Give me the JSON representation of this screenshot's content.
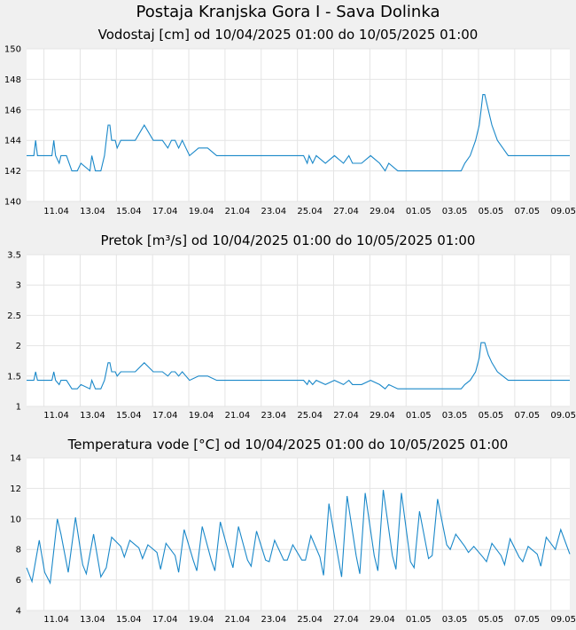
{
  "page": {
    "title": "Postaja Kranjska Gora I - Sava Dolinka"
  },
  "chart_data": [
    {
      "type": "line",
      "title": "Vodostaj [cm] od 10/04/2025 01:00 do 10/05/2025 01:00",
      "xlabel": "",
      "ylabel": "",
      "x_range": [
        "10/04/2025 01:00",
        "10/05/2025 01:00"
      ],
      "x_ticks": [
        "11.04",
        "13.04",
        "15.04",
        "17.04",
        "19.04",
        "21.04",
        "23.04",
        "25.04",
        "27.04",
        "29.04",
        "01.05",
        "03.05",
        "05.05",
        "07.05",
        "09.05"
      ],
      "ylim": [
        140,
        150
      ],
      "y_ticks": [
        "140",
        "142",
        "144",
        "146",
        "148",
        "150"
      ],
      "grid": true,
      "series": [
        {
          "color": "#1a88c9",
          "x": [
            0,
            0.4,
            0.5,
            0.6,
            0.8,
            1.4,
            1.5,
            1.6,
            1.8,
            1.9,
            2.2,
            2.5,
            2.8,
            3.0,
            3.5,
            3.6,
            3.8,
            4.1,
            4.3,
            4.4,
            4.5,
            4.6,
            4.7,
            4.9,
            5.0,
            5.2,
            5.4,
            5.5,
            5.7,
            5.8,
            6.0,
            6.5,
            7.0,
            7.5,
            7.8,
            8.0,
            8.2,
            8.4,
            8.6,
            8.8,
            9.0,
            9.5,
            10.0,
            10.5,
            11.0,
            11.5,
            12.0,
            12.5,
            13.0,
            13.5,
            14.0,
            14.5,
            15.0,
            15.3,
            15.5,
            15.6,
            15.8,
            16.0,
            16.5,
            17.0,
            17.5,
            17.8,
            18.0,
            18.5,
            19.0,
            19.5,
            19.8,
            20.0,
            20.5,
            21.0,
            21.5,
            22.0,
            22.5,
            22.8,
            23.0,
            23.5,
            24.0,
            24.2,
            24.5,
            24.8,
            25.0,
            25.1,
            25.2,
            25.3,
            25.5,
            25.7,
            26.0,
            26.3,
            26.6,
            27.0,
            27.5,
            28.0,
            28.5,
            29.0,
            29.5,
            30.0
          ],
          "values": [
            143,
            143,
            144,
            143,
            143,
            143,
            144,
            143,
            142.5,
            143,
            143,
            142,
            142,
            142.5,
            142,
            143,
            142,
            142,
            143,
            144,
            145,
            145,
            144,
            144,
            143.5,
            144,
            144,
            144,
            144,
            144,
            144,
            145,
            144,
            144,
            143.5,
            144,
            144,
            143.5,
            144,
            143.5,
            143,
            143.5,
            143.5,
            143,
            143,
            143,
            143,
            143,
            143,
            143,
            143,
            143,
            143,
            143,
            142.5,
            143,
            142.5,
            143,
            142.5,
            143,
            142.5,
            143,
            142.5,
            142.5,
            143,
            142.5,
            142,
            142.5,
            142,
            142,
            142,
            142,
            142,
            142,
            142,
            142,
            142,
            142.5,
            143,
            144,
            145,
            146,
            147,
            147,
            146,
            145,
            144,
            143.5,
            143,
            143,
            143,
            143,
            143,
            143,
            143,
            143
          ]
        }
      ]
    },
    {
      "type": "line",
      "title": "Pretok [m³/s] od 10/04/2025 01:00 do 10/05/2025 01:00",
      "xlabel": "",
      "ylabel": "",
      "x_range": [
        "10/04/2025 01:00",
        "10/05/2025 01:00"
      ],
      "x_ticks": [
        "11.04",
        "13.04",
        "15.04",
        "17.04",
        "19.04",
        "21.04",
        "23.04",
        "25.04",
        "27.04",
        "29.04",
        "01.05",
        "03.05",
        "05.05",
        "07.05",
        "09.05"
      ],
      "ylim": [
        1,
        3.5
      ],
      "y_ticks": [
        "1",
        "1.5",
        "2",
        "2.5",
        "3",
        "3.5"
      ],
      "grid": true,
      "series": [
        {
          "color": "#1a88c9",
          "x": [
            0,
            0.4,
            0.5,
            0.6,
            0.8,
            1.4,
            1.5,
            1.6,
            1.8,
            1.9,
            2.2,
            2.5,
            2.8,
            3.0,
            3.5,
            3.6,
            3.8,
            4.1,
            4.3,
            4.4,
            4.5,
            4.6,
            4.7,
            4.9,
            5.0,
            5.2,
            5.4,
            5.5,
            5.7,
            5.8,
            6.0,
            6.5,
            7.0,
            7.5,
            7.8,
            8.0,
            8.2,
            8.4,
            8.6,
            8.8,
            9.0,
            9.5,
            10.0,
            10.5,
            11.0,
            11.5,
            12.0,
            12.5,
            13.0,
            13.5,
            14.0,
            14.5,
            15.0,
            15.3,
            15.5,
            15.6,
            15.8,
            16.0,
            16.5,
            17.0,
            17.5,
            17.8,
            18.0,
            18.5,
            19.0,
            19.5,
            19.8,
            20.0,
            20.5,
            21.0,
            21.5,
            22.0,
            22.5,
            22.8,
            23.0,
            23.5,
            24.0,
            24.2,
            24.5,
            24.8,
            25.0,
            25.1,
            25.2,
            25.3,
            25.5,
            25.7,
            26.0,
            26.3,
            26.6,
            27.0,
            27.5,
            28.0,
            28.5,
            29.0,
            29.5,
            30.0
          ],
          "values": [
            1.43,
            1.43,
            1.57,
            1.43,
            1.43,
            1.43,
            1.57,
            1.43,
            1.36,
            1.43,
            1.43,
            1.29,
            1.29,
            1.36,
            1.29,
            1.43,
            1.29,
            1.29,
            1.43,
            1.57,
            1.72,
            1.72,
            1.57,
            1.57,
            1.5,
            1.57,
            1.57,
            1.57,
            1.57,
            1.57,
            1.57,
            1.72,
            1.57,
            1.57,
            1.5,
            1.57,
            1.57,
            1.5,
            1.57,
            1.5,
            1.43,
            1.5,
            1.5,
            1.43,
            1.43,
            1.43,
            1.43,
            1.43,
            1.43,
            1.43,
            1.43,
            1.43,
            1.43,
            1.43,
            1.36,
            1.43,
            1.36,
            1.43,
            1.36,
            1.43,
            1.36,
            1.43,
            1.36,
            1.36,
            1.43,
            1.36,
            1.29,
            1.36,
            1.29,
            1.29,
            1.29,
            1.29,
            1.29,
            1.29,
            1.29,
            1.29,
            1.29,
            1.36,
            1.43,
            1.57,
            1.8,
            2.05,
            2.05,
            2.05,
            1.85,
            1.72,
            1.57,
            1.5,
            1.43,
            1.43,
            1.43,
            1.43,
            1.43,
            1.43,
            1.43,
            1.43
          ]
        }
      ]
    },
    {
      "type": "line",
      "title": "Temperatura vode [°C] od 10/04/2025 01:00 do 10/05/2025 01:00",
      "xlabel": "",
      "ylabel": "",
      "x_range": [
        "10/04/2025 01:00",
        "10/05/2025 01:00"
      ],
      "x_ticks": [
        "11.04",
        "13.04",
        "15.04",
        "17.04",
        "19.04",
        "21.04",
        "23.04",
        "25.04",
        "27.04",
        "29.04",
        "01.05",
        "03.05",
        "05.05",
        "07.05",
        "09.05"
      ],
      "ylim": [
        4,
        14
      ],
      "y_ticks": [
        "4",
        "6",
        "8",
        "10",
        "12",
        "14"
      ],
      "grid": true,
      "series": [
        {
          "color": "#1a88c9",
          "x": [
            0,
            0.3,
            0.7,
            1.0,
            1.3,
            1.7,
            1.9,
            2.3,
            2.7,
            3.1,
            3.3,
            3.7,
            4.1,
            4.4,
            4.7,
            5.2,
            5.4,
            5.7,
            6.2,
            6.4,
            6.7,
            7.2,
            7.4,
            7.7,
            8.2,
            8.4,
            8.7,
            9.2,
            9.4,
            9.7,
            10.2,
            10.4,
            10.7,
            11.2,
            11.4,
            11.7,
            12.2,
            12.4,
            12.7,
            13.2,
            13.4,
            13.7,
            14.2,
            14.4,
            14.7,
            15.2,
            15.4,
            15.7,
            16.2,
            16.4,
            16.7,
            17.2,
            17.4,
            17.7,
            18.2,
            18.4,
            18.7,
            19.2,
            19.4,
            19.7,
            20.2,
            20.4,
            20.7,
            21.2,
            21.4,
            21.7,
            22.2,
            22.4,
            22.7,
            23.2,
            23.4,
            23.7,
            24.2,
            24.4,
            24.7,
            25.2,
            25.4,
            25.7,
            26.2,
            26.4,
            26.7,
            27.2,
            27.4,
            27.7,
            28.2,
            28.4,
            28.7,
            29.2,
            29.5,
            30.0
          ],
          "values": [
            6.8,
            5.9,
            8.6,
            6.5,
            5.8,
            10.0,
            9.0,
            6.5,
            10.1,
            7.0,
            6.4,
            9.0,
            6.2,
            6.8,
            8.8,
            8.2,
            7.5,
            8.6,
            8.1,
            7.4,
            8.3,
            7.8,
            6.7,
            8.4,
            7.6,
            6.5,
            9.3,
            7.3,
            6.6,
            9.5,
            7.3,
            6.6,
            9.8,
            7.6,
            6.8,
            9.5,
            7.3,
            6.9,
            9.2,
            7.3,
            7.2,
            8.6,
            7.3,
            7.3,
            8.3,
            7.3,
            7.3,
            8.9,
            7.5,
            6.3,
            11.0,
            7.5,
            6.2,
            11.5,
            7.6,
            6.4,
            11.7,
            7.6,
            6.6,
            11.9,
            7.6,
            6.7,
            11.7,
            7.2,
            6.8,
            10.5,
            7.4,
            7.6,
            11.3,
            8.3,
            8.0,
            9.0,
            8.2,
            7.8,
            8.2,
            7.5,
            7.2,
            8.4,
            7.6,
            7.0,
            8.7,
            7.5,
            7.2,
            8.2,
            7.7,
            6.9,
            8.8,
            8.0,
            9.3,
            7.7
          ]
        }
      ]
    }
  ]
}
